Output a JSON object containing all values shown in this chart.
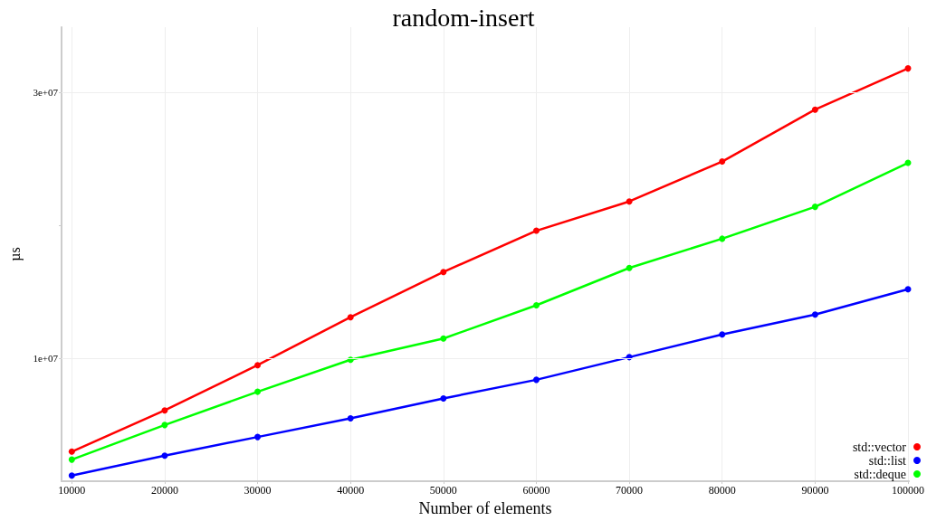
{
  "chart_data": {
    "type": "line",
    "title": "random-insert",
    "xlabel": "Number of elements",
    "ylabel": "µs",
    "x": [
      10000,
      20000,
      30000,
      40000,
      50000,
      60000,
      70000,
      80000,
      90000,
      100000
    ],
    "series": [
      {
        "name": "std::vector",
        "color": "#ff0000",
        "values": [
          3000000.0,
          6100000.0,
          9500000.0,
          13100000.0,
          16500000.0,
          19600000.0,
          21800000.0,
          24800000.0,
          28700000.0,
          31800000.0
        ]
      },
      {
        "name": "std::list",
        "color": "#0000ff",
        "values": [
          1200000.0,
          2700000.0,
          4100000.0,
          5500000.0,
          7000000.0,
          8400000.0,
          10100000.0,
          11800000.0,
          13300000.0,
          15200000.0
        ]
      },
      {
        "name": "std::deque",
        "color": "#00ff00",
        "values": [
          2400000.0,
          5000000.0,
          7500000.0,
          9900000.0,
          11500000.0,
          14000000.0,
          16800000.0,
          19000000.0,
          21400000.0,
          24700000.0
        ]
      }
    ],
    "xlim": [
      8900,
      100100
    ],
    "xticks": [
      10000,
      20000,
      30000,
      40000,
      50000,
      60000,
      70000,
      80000,
      90000,
      100000
    ],
    "ylim": [
      770000,
      34900000
    ],
    "yticks": [
      {
        "value": 10000000,
        "label": "1e+07"
      },
      {
        "value": 20000000,
        "label": null
      },
      {
        "value": 30000000,
        "label": "3e+07"
      }
    ],
    "grid": true,
    "legend": "bottom right",
    "marker": "circle",
    "line_style": "solid"
  }
}
